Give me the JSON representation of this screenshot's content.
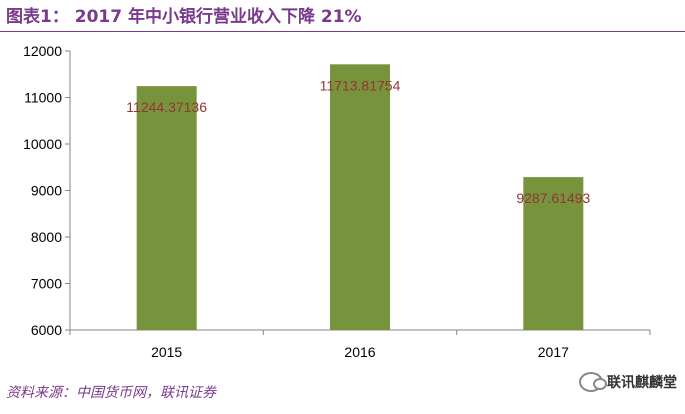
{
  "header": {
    "title": "图表1： 2017 年中小银行营业收入下降 21%"
  },
  "footer": {
    "source": "资料来源：中国货币网，联讯证券",
    "watermark": "联讯麒麟堂"
  },
  "colors": {
    "accent": "#7a3a8c",
    "bar": "#77933c",
    "label": "#943634"
  },
  "chart_data": {
    "type": "bar",
    "categories": [
      "2015",
      "2016",
      "2017"
    ],
    "values": [
      11244.37136,
      11713.81754,
      9287.61493
    ],
    "data_labels": [
      "11244.37136",
      "11713.81754",
      "9287.61493"
    ],
    "y_ticks": [
      "6000",
      "7000",
      "8000",
      "9000",
      "10000",
      "11000",
      "12000"
    ],
    "ylim": [
      6000,
      12000
    ],
    "grid": false,
    "legend": "none"
  }
}
